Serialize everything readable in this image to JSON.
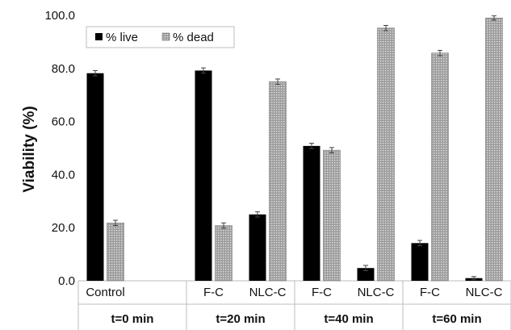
{
  "chart_data": {
    "type": "bar",
    "ylabel": "Viability (%)",
    "ylim": [
      0,
      100
    ],
    "y_ticks": [
      "0.0",
      "20.0",
      "40.0",
      "60.0",
      "80.0",
      "100.0"
    ],
    "categories": [
      "Control",
      "F-C",
      "NLC-C",
      "F-C",
      "NLC-C",
      "F-C",
      "NLC-C"
    ],
    "groups": [
      {
        "label": "t=0 min",
        "categories": [
          "Control"
        ]
      },
      {
        "label": "t=20 min",
        "categories": [
          "F-C",
          "NLC-C"
        ]
      },
      {
        "label": "t=40 min",
        "categories": [
          "F-C",
          "NLC-C"
        ]
      },
      {
        "label": "t=60 min",
        "categories": [
          "F-C",
          "NLC-C"
        ]
      }
    ],
    "series": [
      {
        "name": "% live",
        "color": "#000000",
        "values": [
          78.2,
          79.2,
          25.0,
          50.8,
          4.8,
          14.2,
          1.0
        ],
        "errors": [
          1.0,
          1.0,
          1.0,
          1.0,
          1.0,
          1.0,
          0.6
        ]
      },
      {
        "name": "% dead",
        "color": "#9a9a9a",
        "pattern": "dotted",
        "values": [
          21.8,
          20.8,
          75.0,
          49.2,
          95.2,
          85.8,
          99.0
        ],
        "errors": [
          1.0,
          1.0,
          1.0,
          1.0,
          1.0,
          1.0,
          0.8
        ]
      }
    ],
    "legend_position": "top-left",
    "grid": false
  }
}
